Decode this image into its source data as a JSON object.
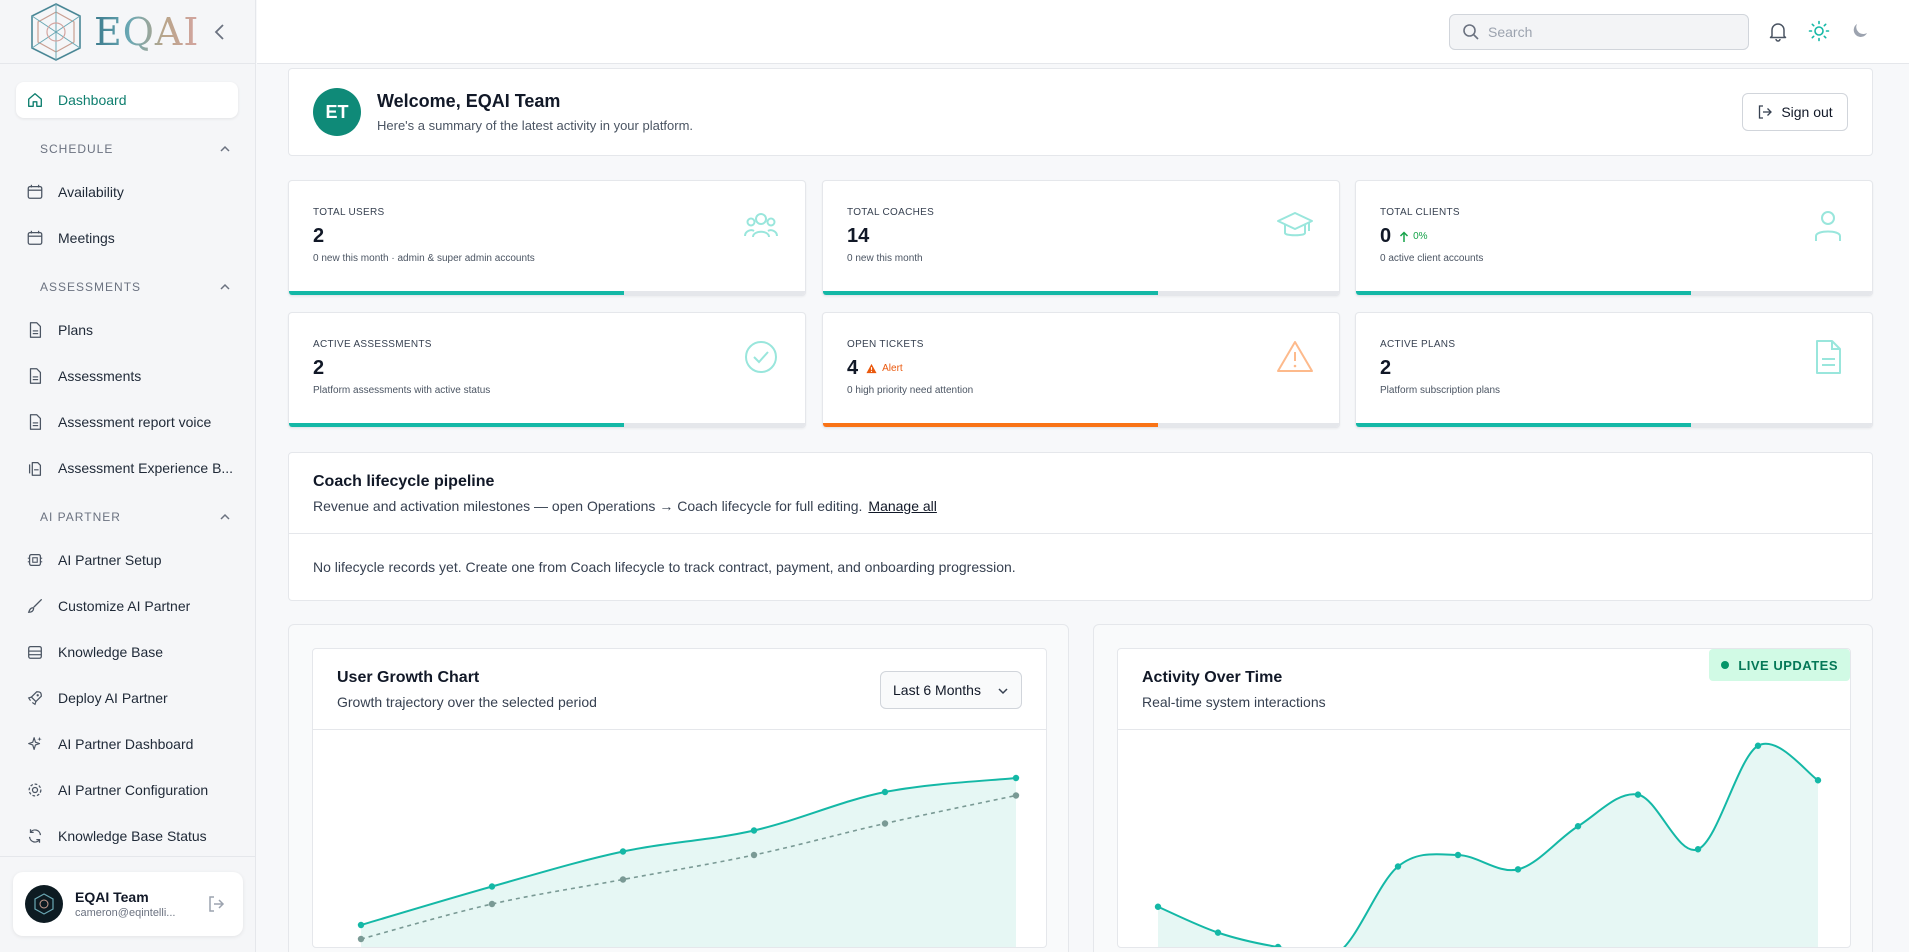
{
  "brand": {
    "name": "EQAI"
  },
  "sidebar": {
    "active": {
      "label": "Dashboard",
      "icon": "home-icon"
    },
    "sections": [
      {
        "title": "SCHEDULE",
        "items": [
          {
            "label": "Availability",
            "icon": "calendar-icon"
          },
          {
            "label": "Meetings",
            "icon": "calendar-icon"
          }
        ]
      },
      {
        "title": "ASSESSMENTS",
        "items": [
          {
            "label": "Plans",
            "icon": "document-icon"
          },
          {
            "label": "Assessments",
            "icon": "document-icon"
          },
          {
            "label": "Assessment report voice",
            "icon": "document-icon"
          },
          {
            "label": "Assessment Experience B...",
            "icon": "documents-icon"
          }
        ]
      },
      {
        "title": "AI PARTNER",
        "items": [
          {
            "label": "AI Partner Setup",
            "icon": "chip-icon"
          },
          {
            "label": "Customize AI Partner",
            "icon": "brush-icon"
          },
          {
            "label": "Knowledge Base",
            "icon": "database-icon"
          },
          {
            "label": "Deploy AI Partner",
            "icon": "rocket-icon"
          },
          {
            "label": "AI Partner Dashboard",
            "icon": "sparkle-icon"
          },
          {
            "label": "AI Partner Configuration",
            "icon": "gear-icon"
          },
          {
            "label": "Knowledge Base Status",
            "icon": "refresh-icon"
          }
        ]
      }
    ],
    "user": {
      "name": "EQAI Team",
      "email": "cameron@eqintelli..."
    }
  },
  "topbar": {
    "search_placeholder": "Search"
  },
  "welcome": {
    "initials": "ET",
    "title": "Welcome, EQAI Team",
    "subtitle": "Here's a summary of the latest activity in your platform.",
    "signout_label": "Sign out"
  },
  "stats": [
    {
      "label": "TOTAL USERS",
      "value": "2",
      "note": "0 new this month · admin & super admin accounts",
      "icon": "users-icon",
      "progress": 0.65,
      "color": "#14b8a6"
    },
    {
      "label": "TOTAL COACHES",
      "value": "14",
      "note": "0 new this month",
      "icon": "graduation-cap-icon",
      "progress": 0.65,
      "color": "#14b8a6"
    },
    {
      "label": "TOTAL CLIENTS",
      "value": "0",
      "trend": "0%",
      "note": "0 active client accounts",
      "icon": "user-icon",
      "progress": 0.65,
      "color": "#14b8a6"
    },
    {
      "label": "ACTIVE ASSESSMENTS",
      "value": "2",
      "note": "Platform assessments with active status",
      "icon": "check-circle-icon",
      "progress": 0.65,
      "color": "#14b8a6"
    },
    {
      "label": "OPEN TICKETS",
      "value": "4",
      "alert": "Alert",
      "note": "0 high priority need attention",
      "icon": "warning-icon",
      "progress": 0.65,
      "color": "#f97316"
    },
    {
      "label": "ACTIVE PLANS",
      "value": "2",
      "note": "Platform subscription plans",
      "icon": "file-icon",
      "progress": 0.65,
      "color": "#14b8a6"
    }
  ],
  "pipeline": {
    "title": "Coach lifecycle pipeline",
    "subtitle": "Revenue and activation milestones — open Operations → Coach lifecycle for full editing.",
    "link": "Manage all",
    "empty": "No lifecycle records yet. Create one from Coach lifecycle to track contract, payment, and onboarding progression."
  },
  "charts": {
    "growth": {
      "title": "User Growth Chart",
      "subtitle": "Growth trajectory over the selected period",
      "range": "Last 6 Months"
    },
    "activity": {
      "title": "Activity Over Time",
      "subtitle": "Real-time system interactions",
      "badge": "LIVE UPDATES"
    }
  },
  "chart_data": [
    {
      "type": "area",
      "series": [
        {
          "values": [
            1.0,
            2.1,
            3.1,
            3.7,
            4.8,
            5.2
          ]
        },
        {
          "values": [
            0.6,
            1.6,
            2.3,
            3.0,
            3.9,
            4.7
          ]
        }
      ]
    },
    {
      "type": "area",
      "series": [
        {
          "values": [
            2.2,
            1.3,
            0.8,
            0.6,
            3.6,
            4.0,
            3.5,
            5.0,
            6.1,
            4.2,
            7.8,
            6.6
          ]
        }
      ]
    }
  ],
  "colors": {
    "accent": "#14b8a6",
    "warning": "#f97316",
    "brand_dark": "#0f8a78"
  }
}
